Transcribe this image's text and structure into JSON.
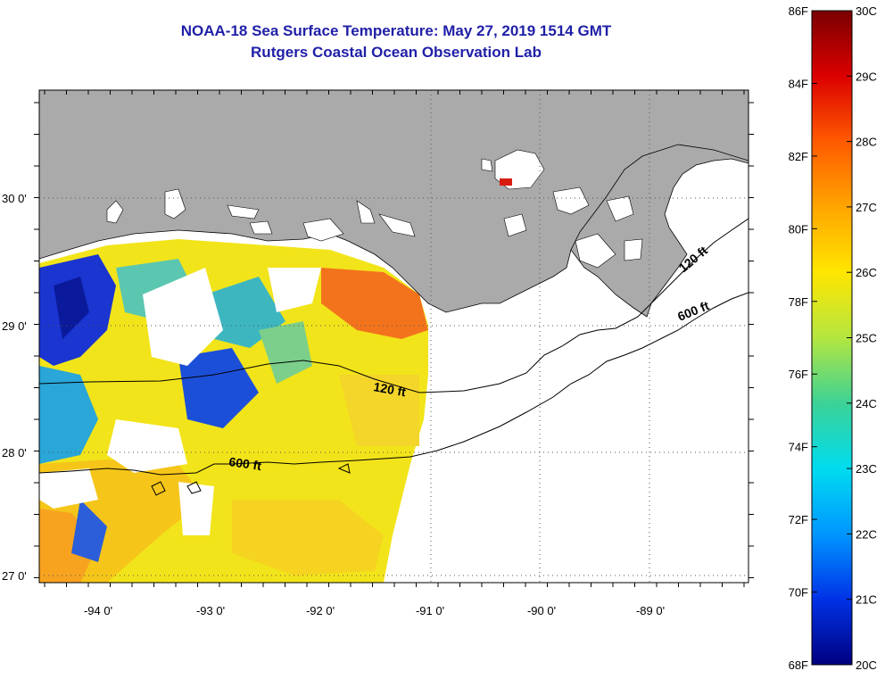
{
  "title": {
    "line1": "NOAA-18 Sea Surface Temperature:  May 27, 2019 1514 GMT",
    "line2": "Rutgers Coastal Ocean Observation Lab"
  },
  "map": {
    "longitude_labels": [
      "-94 0'",
      "-93 0'",
      "-92 0'",
      "-91 0'",
      "-90 0'",
      "-89 0'"
    ],
    "latitude_labels": [
      "30 0'",
      "29 0'",
      "28 0'",
      "27 0'"
    ],
    "contour_labels": {
      "shallow_west": "120 ft",
      "shallow_east": "120 ft",
      "deep_west": "600 ft",
      "deep_east": "600 ft"
    },
    "land_color": "#aaaaaa",
    "no_data_color": "#ffffff"
  },
  "colorbar": {
    "fahrenheit_labels": [
      "86F",
      "84F",
      "82F",
      "80F",
      "78F",
      "76F",
      "74F",
      "72F",
      "70F",
      "68F"
    ],
    "celsius_labels": [
      "30C",
      "29C",
      "28C",
      "27C",
      "26C",
      "25C",
      "24C",
      "23C",
      "22C",
      "21C",
      "20C"
    ],
    "gradient_colors": [
      "#7a0000",
      "#dc0000",
      "#ff5a00",
      "#ffa500",
      "#ffe600",
      "#b4e640",
      "#3cd296",
      "#00dcf0",
      "#0096ff",
      "#0032e6",
      "#000080"
    ]
  }
}
